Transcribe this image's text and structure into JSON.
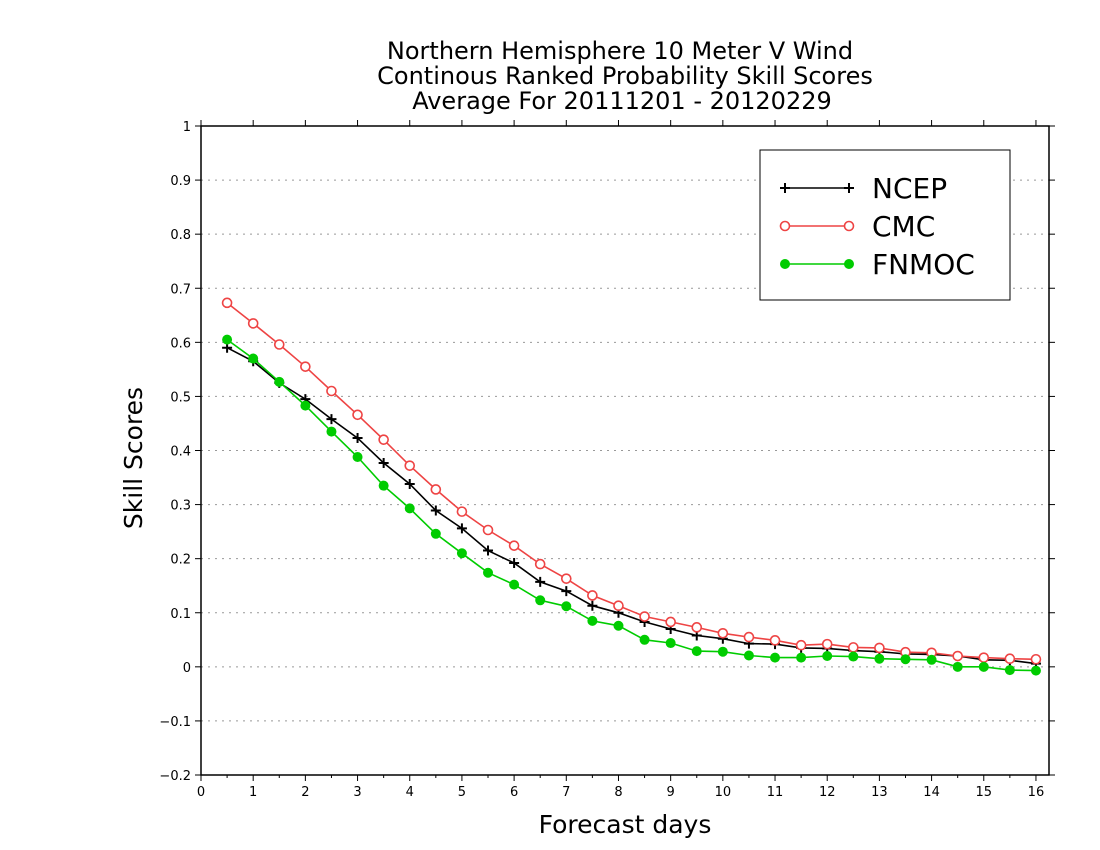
{
  "chart_data": {
    "type": "line",
    "title": [
      "Northern Hemisphere 10 Meter V Wind",
      "Continous Ranked Probability Skill Scores",
      "Average For 20111201 - 20120229"
    ],
    "xlabel": "Forecast days",
    "ylabel": "Skill Scores",
    "xlim": [
      0,
      16.25
    ],
    "ylim": [
      -0.2,
      1
    ],
    "xticks": [
      0,
      1,
      2,
      3,
      4,
      5,
      6,
      7,
      8,
      9,
      10,
      11,
      12,
      13,
      14,
      15,
      16
    ],
    "yticks": [
      -0.2,
      -0.1,
      0,
      0.1,
      0.2,
      0.3,
      0.4,
      0.5,
      0.6,
      0.7,
      0.8,
      0.9,
      1
    ],
    "ytick_labels": [
      "−0.2",
      "−0.1",
      "0",
      "0.1",
      "0.2",
      "0.3",
      "0.4",
      "0.5",
      "0.6",
      "0.7",
      "0.8",
      "0.9",
      "1"
    ],
    "grid": "horizontal dotted",
    "legend_position": "top-right",
    "x": [
      0.5,
      1,
      1.5,
      2,
      2.5,
      3,
      3.5,
      4,
      4.5,
      5,
      5.5,
      6,
      6.5,
      7,
      7.5,
      8,
      8.5,
      9,
      9.5,
      10,
      10.5,
      11,
      11.5,
      12,
      12.5,
      13,
      13.5,
      14,
      14.5,
      15,
      15.5,
      16
    ],
    "series": [
      {
        "name": "NCEP",
        "color": "#000000",
        "marker": "plus",
        "values": [
          0.59,
          0.565,
          0.525,
          0.495,
          0.458,
          0.423,
          0.377,
          0.338,
          0.289,
          0.256,
          0.215,
          0.192,
          0.157,
          0.14,
          0.113,
          0.1,
          0.083,
          0.07,
          0.058,
          0.052,
          0.043,
          0.042,
          0.035,
          0.034,
          0.03,
          0.028,
          0.024,
          0.023,
          0.02,
          0.013,
          0.012,
          0.006
        ]
      },
      {
        "name": "CMC",
        "color": "#ee4444",
        "marker": "open-circle",
        "values": [
          0.673,
          0.635,
          0.596,
          0.555,
          0.51,
          0.466,
          0.42,
          0.372,
          0.328,
          0.287,
          0.253,
          0.224,
          0.19,
          0.163,
          0.132,
          0.113,
          0.093,
          0.083,
          0.073,
          0.062,
          0.055,
          0.049,
          0.04,
          0.042,
          0.036,
          0.035,
          0.027,
          0.026,
          0.02,
          0.017,
          0.015,
          0.014
        ]
      },
      {
        "name": "FNMOC",
        "color": "#00cc00",
        "marker": "filled-circle",
        "values": [
          0.605,
          0.57,
          0.527,
          0.483,
          0.435,
          0.388,
          0.335,
          0.293,
          0.246,
          0.21,
          0.174,
          0.152,
          0.123,
          0.112,
          0.085,
          0.076,
          0.05,
          0.044,
          0.029,
          0.028,
          0.021,
          0.017,
          0.017,
          0.02,
          0.019,
          0.015,
          0.014,
          0.013,
          0.0,
          0.0,
          -0.006,
          -0.007
        ]
      }
    ]
  }
}
